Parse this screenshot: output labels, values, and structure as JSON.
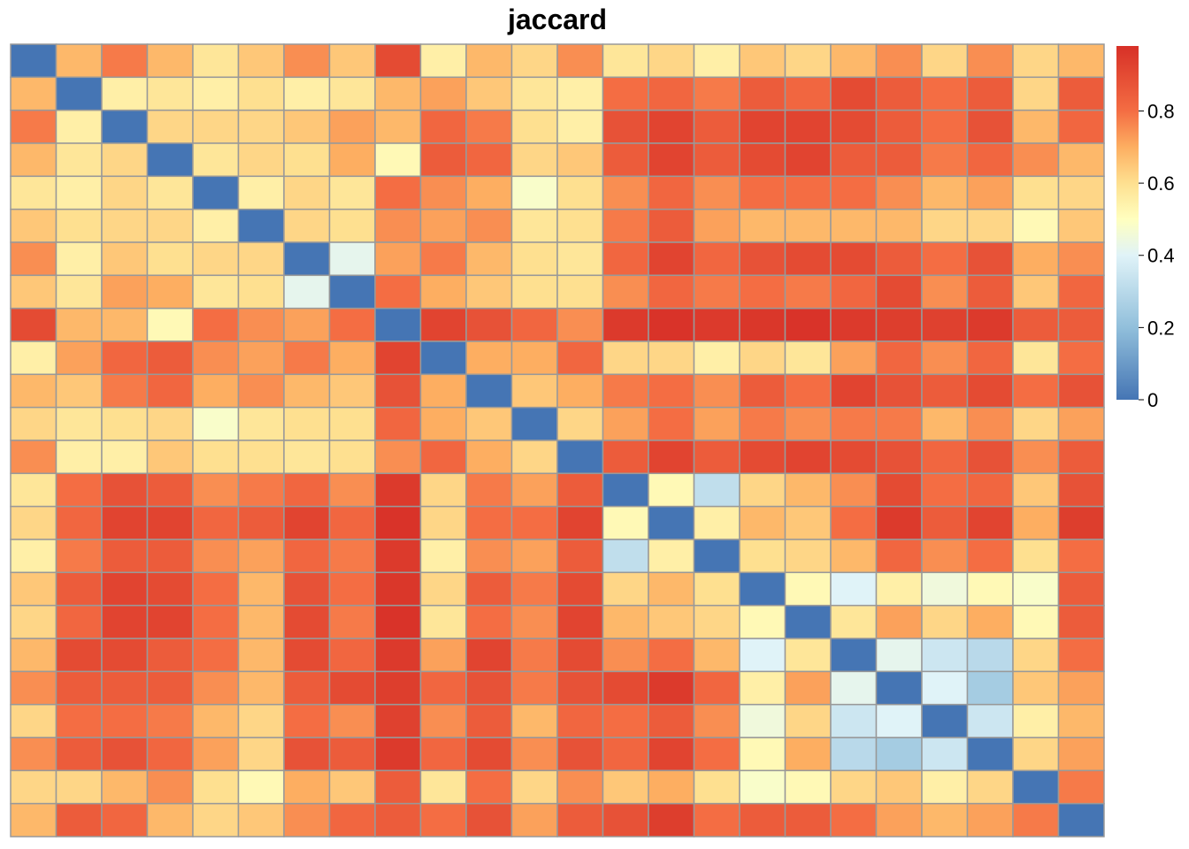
{
  "chart_data": {
    "type": "heatmap",
    "title": "jaccard",
    "xlabel": "",
    "ylabel": "",
    "rows": 24,
    "cols": 24,
    "value_range": [
      0,
      0.98
    ],
    "colorbar": {
      "ticks": [
        0,
        0.2,
        0.4,
        0.6,
        0.8
      ],
      "tick_labels": [
        "0",
        "0.2",
        "0.4",
        "0.6",
        "0.8"
      ],
      "placement": "right"
    },
    "colormap": [
      {
        "v": 0.0,
        "color": "#4575b4"
      },
      {
        "v": 0.2,
        "color": "#91bfdb"
      },
      {
        "v": 0.4,
        "color": "#e0f3f8"
      },
      {
        "v": 0.5,
        "color": "#ffffbf"
      },
      {
        "v": 0.6,
        "color": "#fee090"
      },
      {
        "v": 0.7,
        "color": "#fdae61"
      },
      {
        "v": 0.8,
        "color": "#f46d43"
      },
      {
        "v": 0.98,
        "color": "#d73027"
      }
    ],
    "cell_border_color": "#999999",
    "matrix": [
      [
        0.0,
        0.68,
        0.78,
        0.68,
        0.58,
        0.65,
        0.75,
        0.65,
        0.9,
        0.55,
        0.68,
        0.62,
        0.75,
        0.58,
        0.62,
        0.55,
        0.65,
        0.62,
        0.68,
        0.75,
        0.62,
        0.75,
        0.62,
        0.68
      ],
      [
        0.68,
        0.0,
        0.55,
        0.58,
        0.55,
        0.6,
        0.55,
        0.58,
        0.68,
        0.72,
        0.65,
        0.58,
        0.55,
        0.8,
        0.82,
        0.78,
        0.85,
        0.82,
        0.9,
        0.85,
        0.8,
        0.85,
        0.62,
        0.85
      ],
      [
        0.78,
        0.55,
        0.0,
        0.62,
        0.62,
        0.62,
        0.65,
        0.72,
        0.68,
        0.82,
        0.78,
        0.6,
        0.55,
        0.88,
        0.92,
        0.85,
        0.92,
        0.92,
        0.9,
        0.85,
        0.8,
        0.88,
        0.68,
        0.82
      ],
      [
        0.68,
        0.58,
        0.62,
        0.0,
        0.58,
        0.62,
        0.6,
        0.7,
        0.52,
        0.85,
        0.82,
        0.62,
        0.65,
        0.85,
        0.92,
        0.85,
        0.9,
        0.92,
        0.85,
        0.85,
        0.78,
        0.82,
        0.75,
        0.68
      ],
      [
        0.58,
        0.55,
        0.62,
        0.58,
        0.0,
        0.55,
        0.62,
        0.58,
        0.8,
        0.75,
        0.7,
        0.48,
        0.6,
        0.75,
        0.82,
        0.75,
        0.8,
        0.8,
        0.8,
        0.75,
        0.68,
        0.72,
        0.6,
        0.62
      ],
      [
        0.65,
        0.6,
        0.62,
        0.62,
        0.55,
        0.0,
        0.62,
        0.6,
        0.75,
        0.72,
        0.75,
        0.58,
        0.6,
        0.78,
        0.85,
        0.72,
        0.68,
        0.68,
        0.68,
        0.68,
        0.62,
        0.62,
        0.52,
        0.65
      ],
      [
        0.75,
        0.55,
        0.65,
        0.6,
        0.62,
        0.62,
        0.0,
        0.42,
        0.72,
        0.78,
        0.68,
        0.6,
        0.58,
        0.82,
        0.92,
        0.82,
        0.88,
        0.9,
        0.9,
        0.85,
        0.8,
        0.88,
        0.7,
        0.75
      ],
      [
        0.65,
        0.58,
        0.72,
        0.7,
        0.58,
        0.6,
        0.42,
        0.0,
        0.8,
        0.7,
        0.65,
        0.6,
        0.6,
        0.75,
        0.82,
        0.78,
        0.8,
        0.78,
        0.82,
        0.9,
        0.75,
        0.85,
        0.65,
        0.82
      ],
      [
        0.9,
        0.68,
        0.68,
        0.52,
        0.8,
        0.75,
        0.72,
        0.8,
        0.0,
        0.92,
        0.88,
        0.82,
        0.75,
        0.95,
        0.97,
        0.95,
        0.96,
        0.97,
        0.95,
        0.94,
        0.93,
        0.95,
        0.85,
        0.85
      ],
      [
        0.55,
        0.72,
        0.82,
        0.85,
        0.75,
        0.72,
        0.78,
        0.7,
        0.92,
        0.0,
        0.7,
        0.7,
        0.82,
        0.62,
        0.62,
        0.55,
        0.62,
        0.58,
        0.72,
        0.82,
        0.75,
        0.82,
        0.58,
        0.8
      ],
      [
        0.68,
        0.65,
        0.78,
        0.82,
        0.7,
        0.75,
        0.68,
        0.65,
        0.88,
        0.7,
        0.0,
        0.65,
        0.7,
        0.78,
        0.8,
        0.75,
        0.85,
        0.8,
        0.92,
        0.88,
        0.85,
        0.9,
        0.8,
        0.88
      ],
      [
        0.62,
        0.58,
        0.6,
        0.62,
        0.48,
        0.58,
        0.6,
        0.6,
        0.82,
        0.7,
        0.65,
        0.0,
        0.62,
        0.72,
        0.8,
        0.72,
        0.78,
        0.75,
        0.78,
        0.78,
        0.68,
        0.75,
        0.62,
        0.72
      ],
      [
        0.75,
        0.55,
        0.55,
        0.65,
        0.6,
        0.6,
        0.58,
        0.6,
        0.75,
        0.82,
        0.7,
        0.62,
        0.0,
        0.85,
        0.92,
        0.85,
        0.9,
        0.92,
        0.9,
        0.88,
        0.82,
        0.88,
        0.75,
        0.85
      ],
      [
        0.58,
        0.8,
        0.88,
        0.85,
        0.75,
        0.78,
        0.82,
        0.75,
        0.95,
        0.62,
        0.78,
        0.72,
        0.85,
        0.0,
        0.52,
        0.32,
        0.62,
        0.68,
        0.75,
        0.9,
        0.8,
        0.82,
        0.65,
        0.88
      ],
      [
        0.62,
        0.82,
        0.92,
        0.92,
        0.82,
        0.85,
        0.92,
        0.82,
        0.97,
        0.62,
        0.8,
        0.8,
        0.92,
        0.52,
        0.0,
        0.55,
        0.68,
        0.65,
        0.8,
        0.95,
        0.85,
        0.92,
        0.7,
        0.94
      ],
      [
        0.55,
        0.78,
        0.85,
        0.85,
        0.75,
        0.72,
        0.82,
        0.78,
        0.95,
        0.55,
        0.75,
        0.72,
        0.85,
        0.32,
        0.55,
        0.0,
        0.6,
        0.62,
        0.68,
        0.82,
        0.75,
        0.8,
        0.6,
        0.8
      ],
      [
        0.65,
        0.85,
        0.92,
        0.9,
        0.8,
        0.68,
        0.88,
        0.8,
        0.96,
        0.62,
        0.85,
        0.78,
        0.9,
        0.62,
        0.68,
        0.6,
        0.0,
        0.52,
        0.4,
        0.55,
        0.45,
        0.52,
        0.48,
        0.85
      ],
      [
        0.62,
        0.82,
        0.92,
        0.92,
        0.8,
        0.68,
        0.9,
        0.78,
        0.97,
        0.58,
        0.8,
        0.75,
        0.92,
        0.68,
        0.65,
        0.62,
        0.52,
        0.0,
        0.58,
        0.72,
        0.62,
        0.7,
        0.52,
        0.85
      ],
      [
        0.68,
        0.9,
        0.9,
        0.85,
        0.8,
        0.68,
        0.9,
        0.82,
        0.95,
        0.72,
        0.92,
        0.78,
        0.9,
        0.75,
        0.8,
        0.68,
        0.4,
        0.58,
        0.0,
        0.42,
        0.35,
        0.3,
        0.62,
        0.8
      ],
      [
        0.75,
        0.85,
        0.85,
        0.85,
        0.75,
        0.68,
        0.85,
        0.9,
        0.94,
        0.82,
        0.88,
        0.78,
        0.88,
        0.9,
        0.95,
        0.82,
        0.55,
        0.72,
        0.42,
        0.0,
        0.4,
        0.25,
        0.65,
        0.72
      ],
      [
        0.62,
        0.8,
        0.8,
        0.78,
        0.68,
        0.62,
        0.8,
        0.75,
        0.93,
        0.75,
        0.85,
        0.68,
        0.82,
        0.8,
        0.85,
        0.75,
        0.45,
        0.62,
        0.35,
        0.4,
        0.0,
        0.35,
        0.55,
        0.68
      ],
      [
        0.75,
        0.85,
        0.88,
        0.82,
        0.72,
        0.62,
        0.88,
        0.85,
        0.95,
        0.82,
        0.9,
        0.75,
        0.88,
        0.82,
        0.92,
        0.8,
        0.52,
        0.7,
        0.3,
        0.25,
        0.35,
        0.0,
        0.62,
        0.72
      ],
      [
        0.62,
        0.62,
        0.68,
        0.75,
        0.6,
        0.52,
        0.7,
        0.65,
        0.85,
        0.58,
        0.8,
        0.62,
        0.75,
        0.65,
        0.7,
        0.6,
        0.48,
        0.52,
        0.62,
        0.65,
        0.55,
        0.62,
        0.0,
        0.78
      ],
      [
        0.68,
        0.85,
        0.82,
        0.68,
        0.62,
        0.65,
        0.75,
        0.82,
        0.85,
        0.8,
        0.88,
        0.72,
        0.85,
        0.88,
        0.94,
        0.8,
        0.85,
        0.85,
        0.8,
        0.72,
        0.68,
        0.72,
        0.78,
        0.0
      ]
    ]
  }
}
